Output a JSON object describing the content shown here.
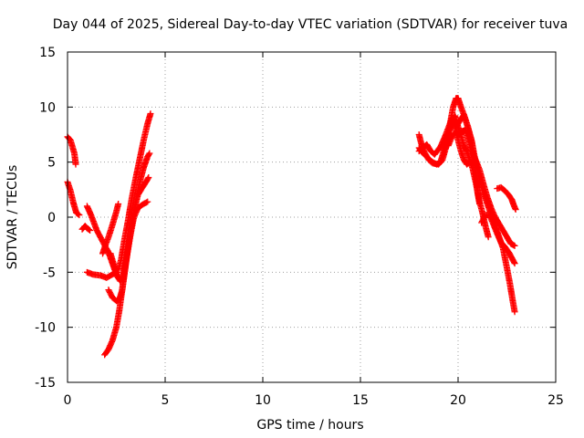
{
  "chart_data": {
    "type": "scatter",
    "title": "Day 044 of 2025, Sidereal Day-to-day VTEC variation (SDTVAR) for receiver tuva",
    "xlabel": "GPS time / hours",
    "ylabel": "SDTVAR / TECUs",
    "xlim": [
      0,
      25
    ],
    "ylim": [
      -15,
      15
    ],
    "xticks": [
      0,
      5,
      10,
      15,
      20,
      25
    ],
    "yticks": [
      -15,
      -10,
      -5,
      0,
      5,
      10,
      15
    ],
    "grid": true,
    "marker": "+",
    "series": [
      {
        "name": "SDTVAR",
        "color": "#ff0000",
        "tracks": [
          [
            [
              0.0,
              7.3
            ],
            [
              0.15,
              7.0
            ],
            [
              0.25,
              6.4
            ],
            [
              0.35,
              5.8
            ],
            [
              0.42,
              4.8
            ]
          ],
          [
            [
              0.0,
              3.2
            ],
            [
              0.15,
              2.4
            ],
            [
              0.3,
              1.3
            ],
            [
              0.45,
              0.4
            ],
            [
              0.6,
              0.2
            ]
          ],
          [
            [
              0.75,
              -1.1
            ],
            [
              0.9,
              -0.8
            ],
            [
              1.0,
              -1.0
            ],
            [
              1.15,
              -1.2
            ]
          ],
          [
            [
              1.0,
              1.0
            ],
            [
              1.2,
              0.2
            ],
            [
              1.5,
              -1.2
            ],
            [
              1.8,
              -2.2
            ],
            [
              2.1,
              -3.2
            ],
            [
              2.3,
              -4.2
            ],
            [
              2.5,
              -5.2
            ]
          ],
          [
            [
              1.0,
              -5.0
            ],
            [
              1.3,
              -5.2
            ],
            [
              1.7,
              -5.3
            ],
            [
              2.0,
              -5.5
            ],
            [
              2.3,
              -5.2
            ],
            [
              2.55,
              -5.0
            ]
          ],
          [
            [
              1.8,
              -3.3
            ],
            [
              1.95,
              -2.5
            ],
            [
              2.1,
              -1.8
            ],
            [
              2.3,
              -0.7
            ],
            [
              2.5,
              0.5
            ],
            [
              2.6,
              1.2
            ]
          ],
          [
            [
              1.9,
              -12.5
            ],
            [
              2.1,
              -12.0
            ],
            [
              2.3,
              -11.2
            ],
            [
              2.5,
              -10.0
            ],
            [
              2.65,
              -8.5
            ],
            [
              2.8,
              -6.6
            ],
            [
              3.0,
              -4.0
            ],
            [
              3.2,
              -1.8
            ],
            [
              3.4,
              0.0
            ],
            [
              3.6,
              0.8
            ],
            [
              3.8,
              1.1
            ],
            [
              4.1,
              1.4
            ]
          ],
          [
            [
              2.1,
              -6.6
            ],
            [
              2.3,
              -7.3
            ],
            [
              2.5,
              -7.6
            ],
            [
              2.65,
              -7.5
            ],
            [
              2.8,
              -6.6
            ],
            [
              2.95,
              -4.7
            ],
            [
              3.1,
              -2.8
            ],
            [
              3.3,
              -0.5
            ],
            [
              3.5,
              1.5
            ],
            [
              3.7,
              3.2
            ],
            [
              3.9,
              4.5
            ],
            [
              4.1,
              5.5
            ],
            [
              4.2,
              5.8
            ]
          ],
          [
            [
              2.2,
              -3.3
            ],
            [
              2.4,
              -4.5
            ],
            [
              2.55,
              -5.4
            ],
            [
              2.7,
              -5.8
            ],
            [
              2.85,
              -5.2
            ],
            [
              3.0,
              -3.9
            ],
            [
              3.2,
              -1.8
            ],
            [
              3.4,
              0.5
            ],
            [
              3.6,
              2.0
            ],
            [
              3.8,
              2.6
            ],
            [
              3.95,
              3.0
            ],
            [
              4.15,
              3.6
            ]
          ],
          [
            [
              2.6,
              -4.8
            ],
            [
              2.75,
              -3.8
            ],
            [
              2.9,
              -2.2
            ],
            [
              3.1,
              -0.3
            ],
            [
              3.3,
              1.8
            ],
            [
              3.5,
              3.6
            ],
            [
              3.7,
              5.3
            ],
            [
              3.9,
              7.0
            ],
            [
              4.1,
              8.5
            ],
            [
              4.25,
              9.4
            ]
          ],
          [
            [
              18.0,
              7.5
            ],
            [
              18.1,
              6.8
            ],
            [
              18.25,
              6.0
            ],
            [
              18.5,
              5.2
            ],
            [
              18.7,
              4.9
            ],
            [
              19.0,
              4.8
            ],
            [
              19.2,
              5.2
            ],
            [
              19.45,
              6.8
            ],
            [
              19.6,
              8.6
            ],
            [
              19.75,
              10.0
            ],
            [
              19.9,
              10.8
            ],
            [
              20.0,
              10.8
            ],
            [
              20.15,
              10.0
            ],
            [
              20.3,
              9.3
            ],
            [
              20.5,
              8.2
            ],
            [
              20.7,
              6.9
            ],
            [
              20.85,
              4.8
            ],
            [
              21.0,
              2.2
            ],
            [
              21.1,
              1.2
            ]
          ],
          [
            [
              18.0,
              6.3
            ],
            [
              18.15,
              5.9
            ],
            [
              18.4,
              5.5
            ],
            [
              18.6,
              5.1
            ],
            [
              18.9,
              4.8
            ],
            [
              19.1,
              5.0
            ],
            [
              19.3,
              6.2
            ],
            [
              19.55,
              7.8
            ],
            [
              19.7,
              8.8
            ],
            [
              19.85,
              9.2
            ],
            [
              20.0,
              8.2
            ],
            [
              20.15,
              7.5
            ],
            [
              20.3,
              6.5
            ],
            [
              20.45,
              6.0
            ],
            [
              20.6,
              5.2
            ],
            [
              20.75,
              4.4
            ],
            [
              20.9,
              3.2
            ],
            [
              21.0,
              2.3
            ],
            [
              21.1,
              1.4
            ],
            [
              21.25,
              0.4
            ],
            [
              21.4,
              -0.8
            ],
            [
              21.55,
              -1.8
            ]
          ],
          [
            [
              18.0,
              6.0
            ],
            [
              18.2,
              6.3
            ],
            [
              18.4,
              6.6
            ],
            [
              18.6,
              6.0
            ],
            [
              18.8,
              5.7
            ],
            [
              19.1,
              6.4
            ],
            [
              19.35,
              7.4
            ],
            [
              19.5,
              8.1
            ],
            [
              19.7,
              9.0
            ],
            [
              19.85,
              8.2
            ],
            [
              20.0,
              7.0
            ],
            [
              20.15,
              6.0
            ],
            [
              20.3,
              5.2
            ],
            [
              20.45,
              4.8
            ],
            [
              20.6,
              5.0
            ]
          ],
          [
            [
              19.5,
              6.5
            ],
            [
              19.7,
              7.4
            ],
            [
              19.9,
              7.7
            ],
            [
              20.05,
              7.5
            ],
            [
              20.2,
              7.8
            ],
            [
              20.35,
              7.9
            ],
            [
              20.5,
              7.3
            ],
            [
              20.7,
              6.0
            ],
            [
              20.9,
              5.2
            ],
            [
              21.1,
              4.3
            ],
            [
              21.3,
              3.0
            ],
            [
              21.5,
              1.8
            ],
            [
              21.7,
              0.8
            ],
            [
              21.9,
              0.0
            ],
            [
              22.1,
              -0.6
            ],
            [
              22.3,
              -1.2
            ],
            [
              22.5,
              -1.8
            ],
            [
              22.7,
              -2.4
            ],
            [
              22.9,
              -2.6
            ]
          ],
          [
            [
              19.9,
              8.2
            ],
            [
              20.1,
              8.8
            ],
            [
              20.3,
              9.3
            ],
            [
              20.5,
              8.2
            ],
            [
              20.7,
              6.9
            ],
            [
              20.9,
              5.0
            ],
            [
              21.1,
              3.4
            ],
            [
              21.3,
              2.2
            ],
            [
              21.5,
              1.2
            ],
            [
              21.7,
              0.2
            ],
            [
              21.9,
              -0.8
            ],
            [
              22.1,
              -1.8
            ],
            [
              22.3,
              -2.8
            ],
            [
              22.5,
              -4.6
            ],
            [
              22.65,
              -6.0
            ],
            [
              22.8,
              -7.6
            ],
            [
              22.9,
              -8.6
            ]
          ],
          [
            [
              21.2,
              -0.5
            ],
            [
              21.4,
              0.2
            ],
            [
              21.6,
              0.2
            ],
            [
              21.8,
              -0.6
            ],
            [
              22.0,
              -1.5
            ],
            [
              22.2,
              -2.3
            ],
            [
              22.4,
              -2.7
            ],
            [
              22.6,
              -3.2
            ],
            [
              22.75,
              -3.7
            ],
            [
              22.9,
              -4.2
            ]
          ],
          [
            [
              22.0,
              2.6
            ],
            [
              22.2,
              2.7
            ],
            [
              22.4,
              2.4
            ],
            [
              22.6,
              2.0
            ],
            [
              22.75,
              1.6
            ],
            [
              22.85,
              1.1
            ],
            [
              22.95,
              0.7
            ]
          ]
        ]
      }
    ]
  }
}
